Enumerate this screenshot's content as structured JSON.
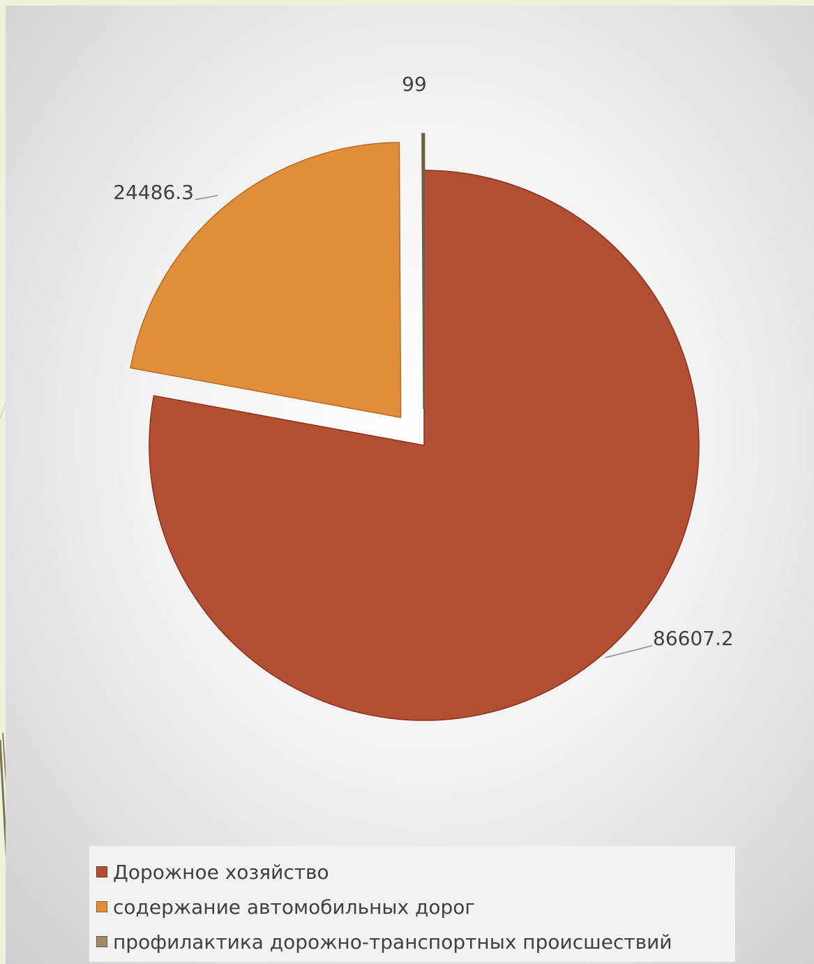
{
  "chart_data": {
    "type": "pie",
    "title": "",
    "categories": [
      "Дорожное хозяйство",
      "содержание автомобильных дорог",
      "профилактика дорожно-транспортных происшествий"
    ],
    "values": [
      86607.2,
      24486.3,
      99
    ],
    "data_labels": [
      "86607.2",
      "24486.3",
      "99"
    ],
    "colors": [
      "#b34f33",
      "#e08e3a",
      "#a08d68"
    ],
    "exploded": [
      false,
      true,
      true
    ],
    "legend_position": "bottom"
  }
}
